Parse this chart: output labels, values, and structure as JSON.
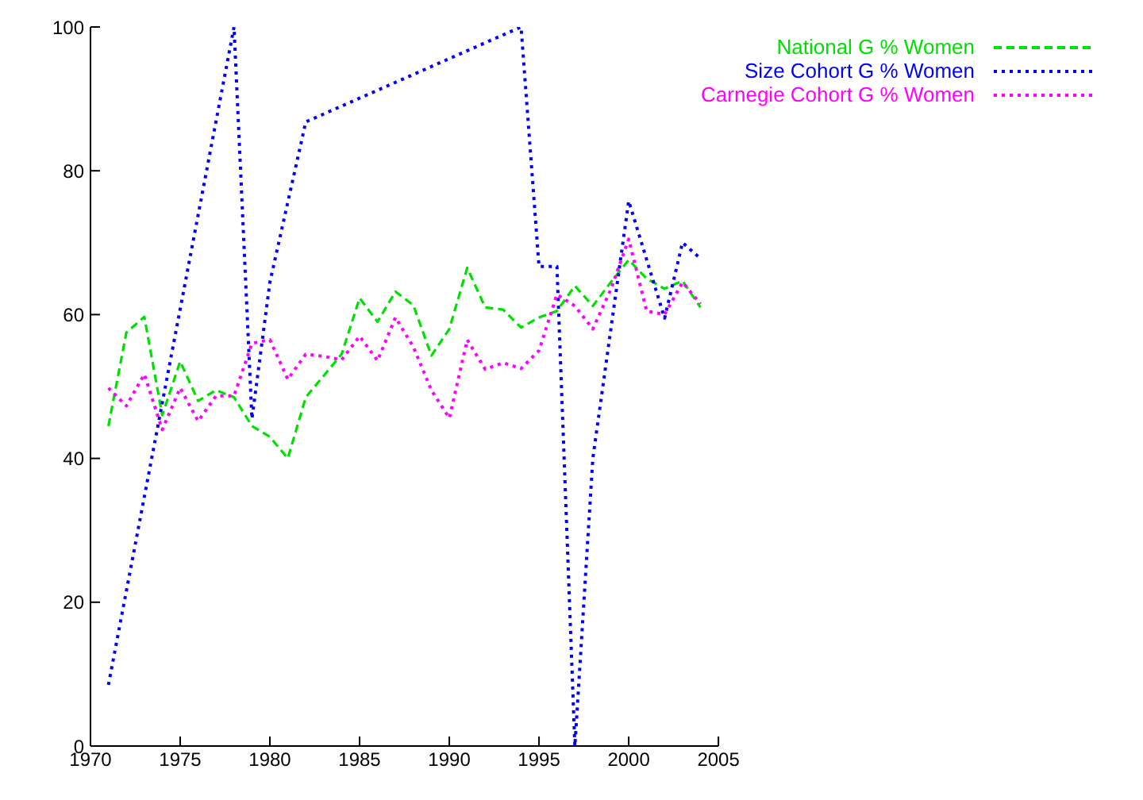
{
  "chart_data": {
    "type": "line",
    "xlim": [
      1970,
      2005
    ],
    "xticks": [
      1970,
      1975,
      1980,
      1985,
      1990,
      1995,
      2000,
      2005
    ],
    "ylim": [
      0,
      100
    ],
    "yticks": [
      0,
      20,
      40,
      60,
      80,
      100
    ],
    "grid": false,
    "legend": "top right",
    "marker": "none",
    "series": [
      {
        "name": "National G % Women",
        "color": "#00e000",
        "line_style": "dashed",
        "x": [
          1971,
          1972,
          1973,
          1974,
          1975,
          1976,
          1977,
          1978,
          1979,
          1980,
          1981,
          1982,
          1983,
          1984,
          1985,
          1986,
          1987,
          1988,
          1989,
          1990,
          1991,
          1992,
          1993,
          1994,
          1995,
          1996,
          1997,
          1998,
          1999,
          2000,
          2001,
          2002,
          2003,
          2004
        ],
        "values": [
          44.5,
          57.5,
          59.7,
          46,
          53.5,
          48,
          49.5,
          48.5,
          44.5,
          43,
          40,
          48.5,
          51.5,
          54.5,
          62.3,
          59,
          63.2,
          61.3,
          54.3,
          58,
          66.5,
          61,
          60.7,
          58.2,
          59.6,
          60.5,
          64,
          61.2,
          64.5,
          67.6,
          65,
          63.6,
          64.7,
          61
        ]
      },
      {
        "name": "Size Cohort G % Women",
        "color": "#0000ff",
        "line_style": "dotted",
        "x": [
          1971,
          1978,
          1979,
          1980,
          1982,
          1994,
          1995,
          1996,
          1997,
          1998,
          2000,
          2002,
          2003,
          2004
        ],
        "values": [
          8.5,
          100,
          45.5,
          64.5,
          86.8,
          100,
          66.7,
          66.7,
          0,
          40,
          75.8,
          59.5,
          70,
          67.8
        ]
      },
      {
        "name": "Carnegie Cohort G % Women",
        "color": "#ff00ff",
        "line_style": "dotted",
        "x": [
          1971,
          1972,
          1973,
          1974,
          1975,
          1976,
          1977,
          1978,
          1979,
          1980,
          1981,
          1982,
          1983,
          1984,
          1985,
          1986,
          1987,
          1988,
          1989,
          1990,
          1991,
          1992,
          1993,
          1994,
          1995,
          1996,
          1997,
          1998,
          1999,
          2000,
          2001,
          2002,
          2003,
          2004
        ],
        "values": [
          49.8,
          47.3,
          51.7,
          44,
          49.8,
          45.2,
          48.7,
          48.7,
          56,
          56.5,
          51,
          54.5,
          54.2,
          53.7,
          57,
          53.6,
          59.6,
          55.5,
          49.5,
          45.6,
          56.5,
          52.4,
          53.3,
          52.5,
          55,
          62.8,
          61.2,
          58,
          63.5,
          70.5,
          60.5,
          60,
          64.5,
          61.5
        ]
      }
    ]
  }
}
